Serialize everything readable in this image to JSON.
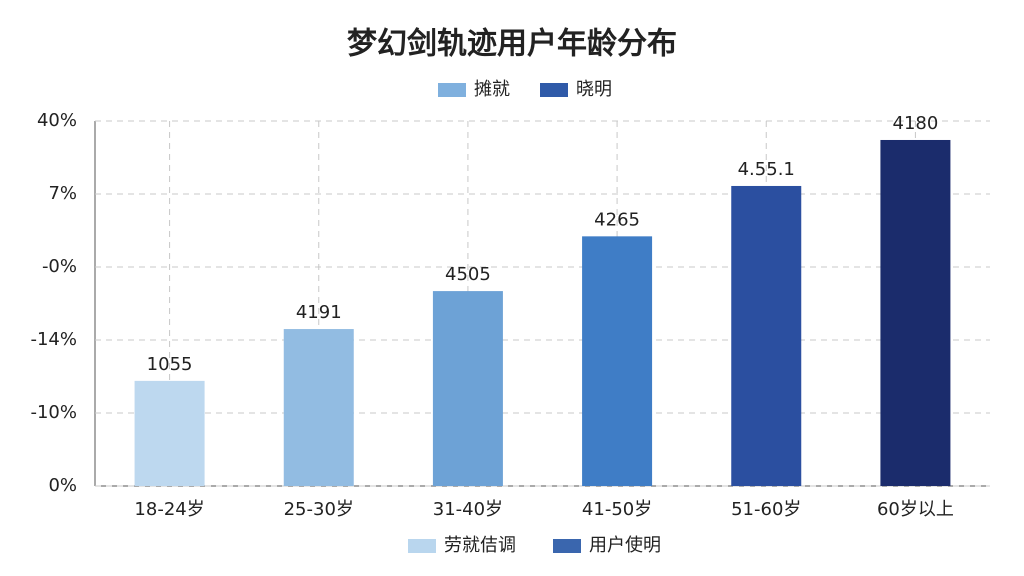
{
  "chart_data": {
    "type": "bar",
    "title": "梦幻剑轨迹用户年龄分布",
    "categories": [
      "18-24岁",
      "25-30岁",
      "31-40岁",
      "41-50岁",
      "51-60岁",
      "60岁以上"
    ],
    "values": [
      1.44,
      2.15,
      2.67,
      3.42,
      4.11,
      4.74
    ],
    "colors": [
      "#bdd8ef",
      "#92bce2",
      "#6da2d6",
      "#3f7dc6",
      "#2b4fa0",
      "#1b2c6c"
    ],
    "annotations": [
      "1055",
      "4191",
      "4505",
      "4265",
      "4.55.1",
      "4180"
    ],
    "ylim": [
      0,
      5
    ],
    "yticks": [
      {
        "value": 0,
        "label": "0%"
      },
      {
        "value": 1,
        "label": "-10%"
      },
      {
        "value": 2,
        "label": "-14%"
      },
      {
        "value": 3,
        "label": "-0%"
      },
      {
        "value": 4,
        "label": "7%"
      },
      {
        "value": 5,
        "label": "40%"
      }
    ],
    "grid": true,
    "legend_top": [
      {
        "label": "摊就",
        "color": "#7fb0de"
      },
      {
        "label": "晓明",
        "color": "#2f5aa8"
      }
    ],
    "legend_bottom": [
      {
        "label": "劳就佶调",
        "color": "#b9d6ee"
      },
      {
        "label": "用户使明",
        "color": "#3a66ae"
      }
    ]
  }
}
